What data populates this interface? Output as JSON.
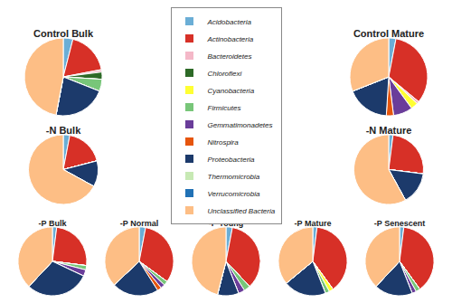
{
  "chart_data": [
    {
      "type": "pie",
      "title": "Control Bulk",
      "legend": "center",
      "categories": [
        "Acidobacteria",
        "Actinobacteria",
        "Bacteroidetes",
        "Chloroflexi",
        "Cyanobacteria",
        "Firmicutes",
        "Gemmatimonadetes",
        "Nitrospira",
        "Proteobacteria",
        "Thermomicrobia",
        "Verrucomicrobia",
        "Unclassified Bacteria"
      ],
      "values": [
        4,
        18,
        1,
        3,
        0,
        5,
        0,
        0,
        22,
        0,
        0,
        47
      ],
      "colors": [
        "#6BAED6",
        "#D73027",
        "#F4B8C8",
        "#2D6A27",
        "#FFFF33",
        "#78C679",
        "#6A3D9A",
        "#E6550D",
        "#1C3A6B",
        "#C7E9B4",
        "#2171B5",
        "#FDBE85"
      ]
    },
    {
      "type": "pie",
      "title": "Control Mature",
      "legend": "center",
      "categories": [
        "Acidobacteria",
        "Actinobacteria",
        "Bacteroidetes",
        "Chloroflexi",
        "Cyanobacteria",
        "Firmicutes",
        "Gemmatimonadetes",
        "Nitrospira",
        "Proteobacteria",
        "Thermomicrobia",
        "Verrucomicrobia",
        "Unclassified Bacteria"
      ],
      "values": [
        3,
        33,
        1,
        0,
        3,
        0,
        8,
        3,
        18,
        0,
        0,
        31
      ],
      "colors": [
        "#6BAED6",
        "#D73027",
        "#F4B8C8",
        "#2D6A27",
        "#FFFF33",
        "#78C679",
        "#6A3D9A",
        "#E6550D",
        "#1C3A6B",
        "#C7E9B4",
        "#2171B5",
        "#FDBE85"
      ]
    },
    {
      "type": "pie",
      "title": "-N Bulk",
      "legend": "center",
      "categories": [
        "Acidobacteria",
        "Actinobacteria",
        "Bacteroidetes",
        "Chloroflexi",
        "Cyanobacteria",
        "Firmicutes",
        "Gemmatimonadetes",
        "Nitrospira",
        "Proteobacteria",
        "Thermomicrobia",
        "Verrucomicrobia",
        "Unclassified Bacteria"
      ],
      "values": [
        3,
        18,
        0,
        0,
        0,
        0,
        0,
        0,
        12,
        0,
        0,
        67
      ],
      "colors": [
        "#6BAED6",
        "#D73027",
        "#F4B8C8",
        "#2D6A27",
        "#FFFF33",
        "#78C679",
        "#6A3D9A",
        "#E6550D",
        "#1C3A6B",
        "#C7E9B4",
        "#2171B5",
        "#FDBE85"
      ]
    },
    {
      "type": "pie",
      "title": "-N Mature",
      "legend": "center",
      "categories": [
        "Acidobacteria",
        "Actinobacteria",
        "Bacteroidetes",
        "Chloroflexi",
        "Cyanobacteria",
        "Firmicutes",
        "Gemmatimonadetes",
        "Nitrospira",
        "Proteobacteria",
        "Thermomicrobia",
        "Verrucomicrobia",
        "Unclassified Bacteria"
      ],
      "values": [
        2,
        25,
        0,
        0,
        0,
        0,
        0,
        0,
        15,
        0,
        0,
        58
      ],
      "colors": [
        "#6BAED6",
        "#D73027",
        "#F4B8C8",
        "#2D6A27",
        "#FFFF33",
        "#78C679",
        "#6A3D9A",
        "#E6550D",
        "#1C3A6B",
        "#C7E9B4",
        "#2171B5",
        "#FDBE85"
      ]
    },
    {
      "type": "pie",
      "title": "-P Bulk",
      "legend": "center",
      "categories": [
        "Acidobacteria",
        "Actinobacteria",
        "Bacteroidetes",
        "Chloroflexi",
        "Cyanobacteria",
        "Firmicutes",
        "Gemmatimonadetes",
        "Nitrospira",
        "Proteobacteria",
        "Thermomicrobia",
        "Verrucomicrobia",
        "Unclassified Bacteria"
      ],
      "values": [
        2,
        25,
        0,
        0,
        0,
        2,
        3,
        0,
        30,
        0,
        0,
        38
      ],
      "colors": [
        "#6BAED6",
        "#D73027",
        "#F4B8C8",
        "#2D6A27",
        "#FFFF33",
        "#78C679",
        "#6A3D9A",
        "#E6550D",
        "#1C3A6B",
        "#C7E9B4",
        "#2171B5",
        "#FDBE85"
      ]
    },
    {
      "type": "pie",
      "title": "-P Normal",
      "legend": "center",
      "categories": [
        "Acidobacteria",
        "Actinobacteria",
        "Bacteroidetes",
        "Chloroflexi",
        "Cyanobacteria",
        "Firmicutes",
        "Gemmatimonadetes",
        "Nitrospira",
        "Proteobacteria",
        "Thermomicrobia",
        "Verrucomicrobia",
        "Unclassified Bacteria"
      ],
      "values": [
        3,
        32,
        0,
        0,
        0,
        2,
        2,
        2,
        22,
        0,
        0,
        37
      ],
      "colors": [
        "#6BAED6",
        "#D73027",
        "#F4B8C8",
        "#2D6A27",
        "#FFFF33",
        "#78C679",
        "#6A3D9A",
        "#E6550D",
        "#1C3A6B",
        "#C7E9B4",
        "#2171B5",
        "#FDBE85"
      ]
    },
    {
      "type": "pie",
      "title": "-P Young",
      "legend": "center",
      "categories": [
        "Acidobacteria",
        "Actinobacteria",
        "Bacteroidetes",
        "Chloroflexi",
        "Cyanobacteria",
        "Firmicutes",
        "Gemmatimonadetes",
        "Nitrospira",
        "Proteobacteria",
        "Thermomicrobia",
        "Verrucomicrobia",
        "Unclassified Bacteria"
      ],
      "values": [
        3,
        35,
        0,
        0,
        0,
        3,
        3,
        0,
        10,
        0,
        0,
        46
      ],
      "colors": [
        "#6BAED6",
        "#D73027",
        "#F4B8C8",
        "#2D6A27",
        "#FFFF33",
        "#78C679",
        "#6A3D9A",
        "#E6550D",
        "#1C3A6B",
        "#C7E9B4",
        "#2171B5",
        "#FDBE85"
      ]
    },
    {
      "type": "pie",
      "title": "-P Mature",
      "legend": "center",
      "categories": [
        "Acidobacteria",
        "Actinobacteria",
        "Bacteroidetes",
        "Chloroflexi",
        "Cyanobacteria",
        "Firmicutes",
        "Gemmatimonadetes",
        "Nitrospira",
        "Proteobacteria",
        "Thermomicrobia",
        "Verrucomicrobia",
        "Unclassified Bacteria"
      ],
      "values": [
        2,
        38,
        0,
        0,
        2,
        2,
        0,
        0,
        20,
        0,
        0,
        36
      ],
      "colors": [
        "#6BAED6",
        "#D73027",
        "#F4B8C8",
        "#2D6A27",
        "#FFFF33",
        "#78C679",
        "#6A3D9A",
        "#E6550D",
        "#1C3A6B",
        "#C7E9B4",
        "#2171B5",
        "#FDBE85"
      ]
    },
    {
      "type": "pie",
      "title": "-P Senescent",
      "legend": "center",
      "categories": [
        "Acidobacteria",
        "Actinobacteria",
        "Bacteroidetes",
        "Chloroflexi",
        "Cyanobacteria",
        "Firmicutes",
        "Gemmatimonadetes",
        "Nitrospira",
        "Proteobacteria",
        "Thermomicrobia",
        "Verrucomicrobia",
        "Unclassified Bacteria"
      ],
      "values": [
        2,
        38,
        0,
        0,
        0,
        2,
        2,
        0,
        18,
        0,
        0,
        38
      ],
      "colors": [
        "#6BAED6",
        "#D73027",
        "#F4B8C8",
        "#2D6A27",
        "#FFFF33",
        "#78C679",
        "#6A3D9A",
        "#E6550D",
        "#1C3A6B",
        "#C7E9B4",
        "#2171B5",
        "#FDBE85"
      ]
    }
  ]
}
